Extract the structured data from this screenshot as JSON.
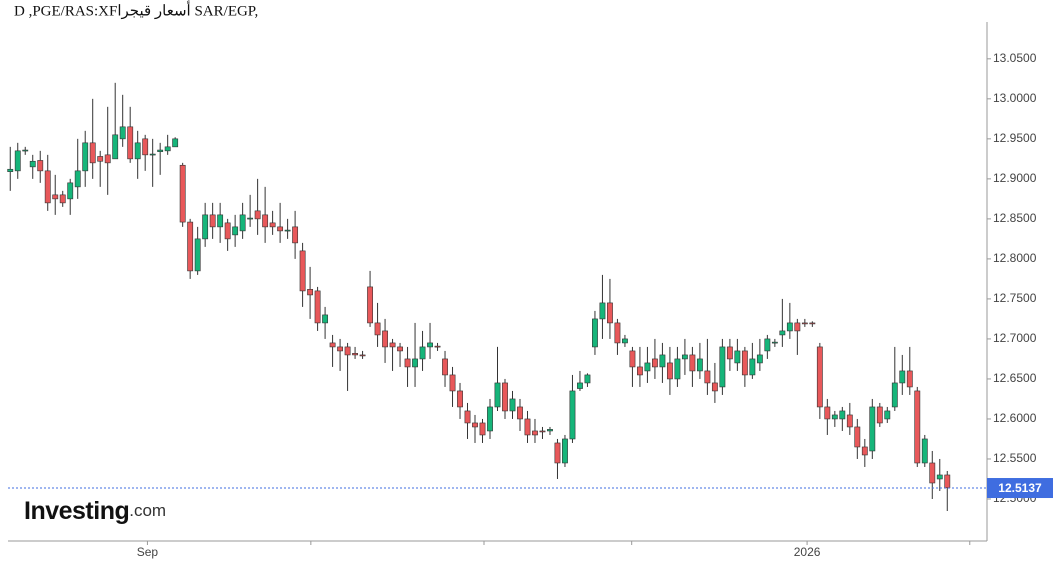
{
  "chart_data": {
    "type": "candlestick",
    "title": "D ,PGE/RAS:XFأسعار قيجرا SAR/EGP,",
    "watermark": "Investing",
    "watermark_suffix": ".com",
    "up_color": "#16b57a",
    "down_color": "#e8585a",
    "wick_color": "#333333",
    "last_price": 12.5137,
    "last_price_color": "#3f6de0",
    "xlim": [
      -0.3,
      130.3
    ],
    "xticks": [
      {
        "value": 18.3,
        "label": "Sep"
      },
      {
        "value": 40.1,
        "label": null
      },
      {
        "value": 63.2,
        "label": null
      },
      {
        "value": 82.9,
        "label": null
      },
      {
        "value": 106.3,
        "label": "2026"
      },
      {
        "value": 128,
        "label": null
      }
    ],
    "ylim": [
      12.4475,
      13.096
    ],
    "yticks": [
      {
        "value": 12.5,
        "label": "12.5000"
      },
      {
        "value": 12.55,
        "label": "12.5500"
      },
      {
        "value": 12.6,
        "label": "12.6000"
      },
      {
        "value": 12.65,
        "label": "12.6500"
      },
      {
        "value": 12.7,
        "label": "12.7000"
      },
      {
        "value": 12.75,
        "label": "12.7500"
      },
      {
        "value": 12.8,
        "label": "12.8000"
      },
      {
        "value": 12.85,
        "label": "12.8500"
      },
      {
        "value": 12.9,
        "label": "12.9000"
      },
      {
        "value": 12.95,
        "label": "12.9500"
      },
      {
        "value": 13.0,
        "label": "13.0000"
      },
      {
        "value": 13.05,
        "label": "13.0500"
      }
    ],
    "open": [
      12.909,
      12.91,
      12.935,
      12.915,
      12.923,
      12.91,
      12.88,
      12.88,
      12.875,
      12.89,
      12.91,
      12.945,
      12.928,
      12.93,
      12.925,
      12.95,
      12.965,
      12.925,
      12.95,
      12.93,
      12.934,
      12.935,
      12.94,
      12.917,
      12.846,
      12.785,
      12.825,
      12.855,
      12.84,
      12.845,
      12.83,
      12.835,
      12.85,
      12.86,
      12.855,
      12.845,
      12.84,
      12.835,
      12.84,
      12.81,
      12.762,
      12.76,
      12.72,
      12.695,
      12.69,
      12.69,
      12.682,
      12.68,
      12.765,
      12.72,
      12.71,
      12.695,
      12.69,
      12.675,
      12.665,
      12.675,
      12.69,
      12.691,
      12.675,
      12.655,
      12.635,
      12.61,
      12.595,
      12.595,
      12.585,
      12.615,
      12.645,
      12.61,
      12.615,
      12.6,
      12.585,
      12.585,
      12.585,
      12.57,
      12.545,
      12.575,
      12.638,
      12.645,
      12.69,
      12.725,
      12.745,
      12.72,
      12.695,
      12.685,
      12.665,
      12.66,
      12.675,
      12.665,
      12.67,
      12.65,
      12.675,
      12.68,
      12.66,
      12.66,
      12.645,
      12.64,
      12.69,
      12.67,
      12.685,
      12.655,
      12.67,
      12.685,
      12.695,
      12.705,
      12.71,
      12.72,
      12.72,
      12.72,
      12.69,
      12.615,
      12.6,
      12.6,
      12.605,
      12.59,
      12.565,
      12.56,
      12.615,
      12.6,
      12.615,
      12.645,
      12.66,
      12.635,
      12.545,
      12.545,
      12.525,
      12.53
    ],
    "high": [
      12.94,
      12.945,
      12.94,
      12.93,
      12.935,
      12.93,
      12.905,
      12.885,
      12.9,
      12.95,
      12.96,
      13.0,
      12.935,
      12.99,
      13.02,
      13.005,
      12.99,
      12.96,
      12.955,
      12.95,
      12.945,
      12.955,
      12.952,
      12.92,
      12.85,
      12.84,
      12.87,
      12.87,
      12.87,
      12.85,
      12.855,
      12.87,
      12.88,
      12.9,
      12.89,
      12.86,
      12.87,
      12.85,
      12.86,
      12.82,
      12.79,
      12.765,
      12.74,
      12.705,
      12.7,
      12.695,
      12.69,
      12.685,
      12.785,
      12.745,
      12.725,
      12.7,
      12.695,
      12.69,
      12.72,
      12.71,
      12.72,
      12.695,
      12.685,
      12.665,
      12.645,
      12.62,
      12.605,
      12.6,
      12.625,
      12.69,
      12.65,
      12.635,
      12.625,
      12.61,
      12.6,
      12.59,
      12.59,
      12.575,
      12.58,
      12.655,
      12.66,
      12.657,
      12.735,
      12.78,
      12.775,
      12.725,
      12.705,
      12.69,
      12.69,
      12.69,
      12.7,
      12.695,
      12.69,
      12.69,
      12.7,
      12.69,
      12.695,
      12.7,
      12.67,
      12.7,
      12.7,
      12.7,
      12.69,
      12.695,
      12.7,
      12.705,
      12.7,
      12.75,
      12.745,
      12.725,
      12.725,
      12.722,
      12.695,
      12.625,
      12.61,
      12.615,
      12.62,
      12.6,
      12.575,
      12.625,
      12.62,
      12.615,
      12.69,
      12.68,
      12.69,
      12.64,
      12.58,
      12.56,
      12.55,
      12.535
    ],
    "low": [
      12.885,
      12.9,
      12.93,
      12.9,
      12.895,
      12.86,
      12.855,
      12.865,
      12.855,
      12.875,
      12.89,
      12.9,
      12.89,
      12.88,
      12.925,
      12.94,
      12.92,
      12.9,
      12.91,
      12.89,
      12.905,
      12.93,
      12.94,
      12.84,
      12.775,
      12.78,
      12.815,
      12.825,
      12.82,
      12.81,
      12.815,
      12.825,
      12.84,
      12.83,
      12.82,
      12.83,
      12.82,
      12.825,
      12.8,
      12.74,
      12.725,
      12.71,
      12.7,
      12.665,
      12.66,
      12.635,
      12.675,
      12.675,
      12.715,
      12.69,
      12.67,
      12.66,
      12.665,
      12.64,
      12.64,
      12.66,
      12.675,
      12.685,
      12.64,
      12.615,
      12.6,
      12.575,
      12.57,
      12.57,
      12.575,
      12.61,
      12.6,
      12.6,
      12.585,
      12.57,
      12.57,
      12.575,
      12.58,
      12.525,
      12.54,
      12.57,
      12.635,
      12.64,
      12.68,
      12.7,
      12.7,
      12.68,
      12.69,
      12.64,
      12.64,
      12.645,
      12.65,
      12.645,
      12.63,
      12.64,
      12.655,
      12.64,
      12.65,
      12.63,
      12.62,
      12.63,
      12.66,
      12.66,
      12.64,
      12.65,
      12.66,
      12.675,
      12.69,
      12.69,
      12.7,
      12.68,
      12.715,
      12.715,
      12.6,
      12.58,
      12.59,
      12.585,
      12.58,
      12.55,
      12.54,
      12.55,
      12.59,
      12.595,
      12.61,
      12.63,
      12.63,
      12.54,
      12.54,
      12.5,
      12.51,
      12.485
    ],
    "close": [
      12.912,
      12.935,
      12.936,
      12.922,
      12.91,
      12.87,
      12.875,
      12.87,
      12.895,
      12.91,
      12.945,
      12.92,
      12.922,
      12.92,
      12.955,
      12.965,
      12.925,
      12.945,
      12.93,
      12.931,
      12.936,
      12.94,
      12.95,
      12.846,
      12.785,
      12.825,
      12.855,
      12.84,
      12.855,
      12.825,
      12.84,
      12.855,
      12.851,
      12.85,
      12.84,
      12.84,
      12.835,
      12.836,
      12.82,
      12.76,
      12.755,
      12.72,
      12.73,
      12.69,
      12.685,
      12.68,
      12.68,
      12.679,
      12.72,
      12.705,
      12.69,
      12.69,
      12.685,
      12.665,
      12.675,
      12.69,
      12.695,
      12.69,
      12.655,
      12.635,
      12.615,
      12.595,
      12.59,
      12.58,
      12.615,
      12.645,
      12.61,
      12.625,
      12.6,
      12.58,
      12.58,
      12.584,
      12.587,
      12.545,
      12.575,
      12.635,
      12.645,
      12.655,
      12.725,
      12.745,
      12.72,
      12.695,
      12.7,
      12.665,
      12.655,
      12.67,
      12.665,
      12.68,
      12.65,
      12.675,
      12.68,
      12.66,
      12.675,
      12.645,
      12.635,
      12.69,
      12.675,
      12.685,
      12.655,
      12.675,
      12.68,
      12.7,
      12.696,
      12.71,
      12.72,
      12.71,
      12.719,
      12.719,
      12.615,
      12.6,
      12.605,
      12.61,
      12.59,
      12.565,
      12.555,
      12.615,
      12.595,
      12.61,
      12.645,
      12.66,
      12.64,
      12.545,
      12.575,
      12.52,
      12.53,
      12.514
    ]
  }
}
